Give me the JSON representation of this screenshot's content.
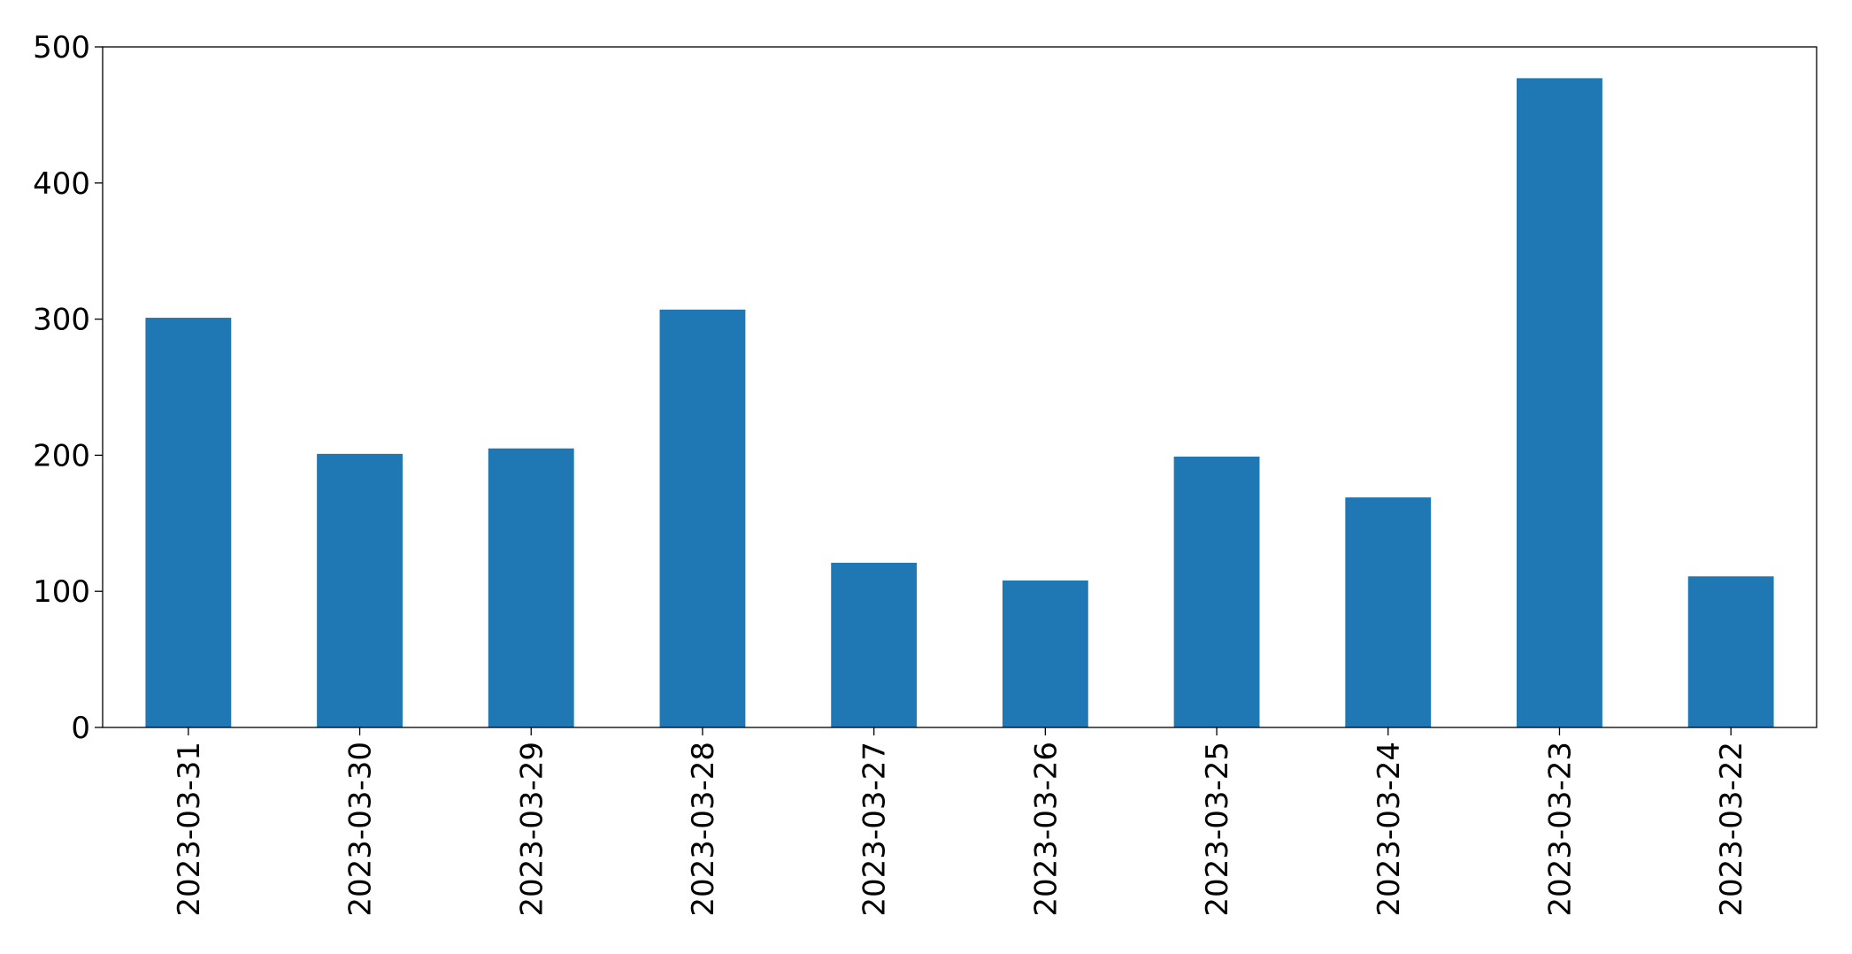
{
  "chart_data": {
    "type": "bar",
    "categories": [
      "2023-03-31",
      "2023-03-30",
      "2023-03-29",
      "2023-03-28",
      "2023-03-27",
      "2023-03-26",
      "2023-03-25",
      "2023-03-24",
      "2023-03-23",
      "2023-03-22"
    ],
    "values": [
      301,
      201,
      205,
      307,
      121,
      108,
      199,
      169,
      477,
      111
    ],
    "color": "#1f77b4",
    "ylim": [
      0,
      500
    ],
    "yticks": [
      0,
      100,
      200,
      300,
      400,
      500
    ],
    "grid": false
  }
}
